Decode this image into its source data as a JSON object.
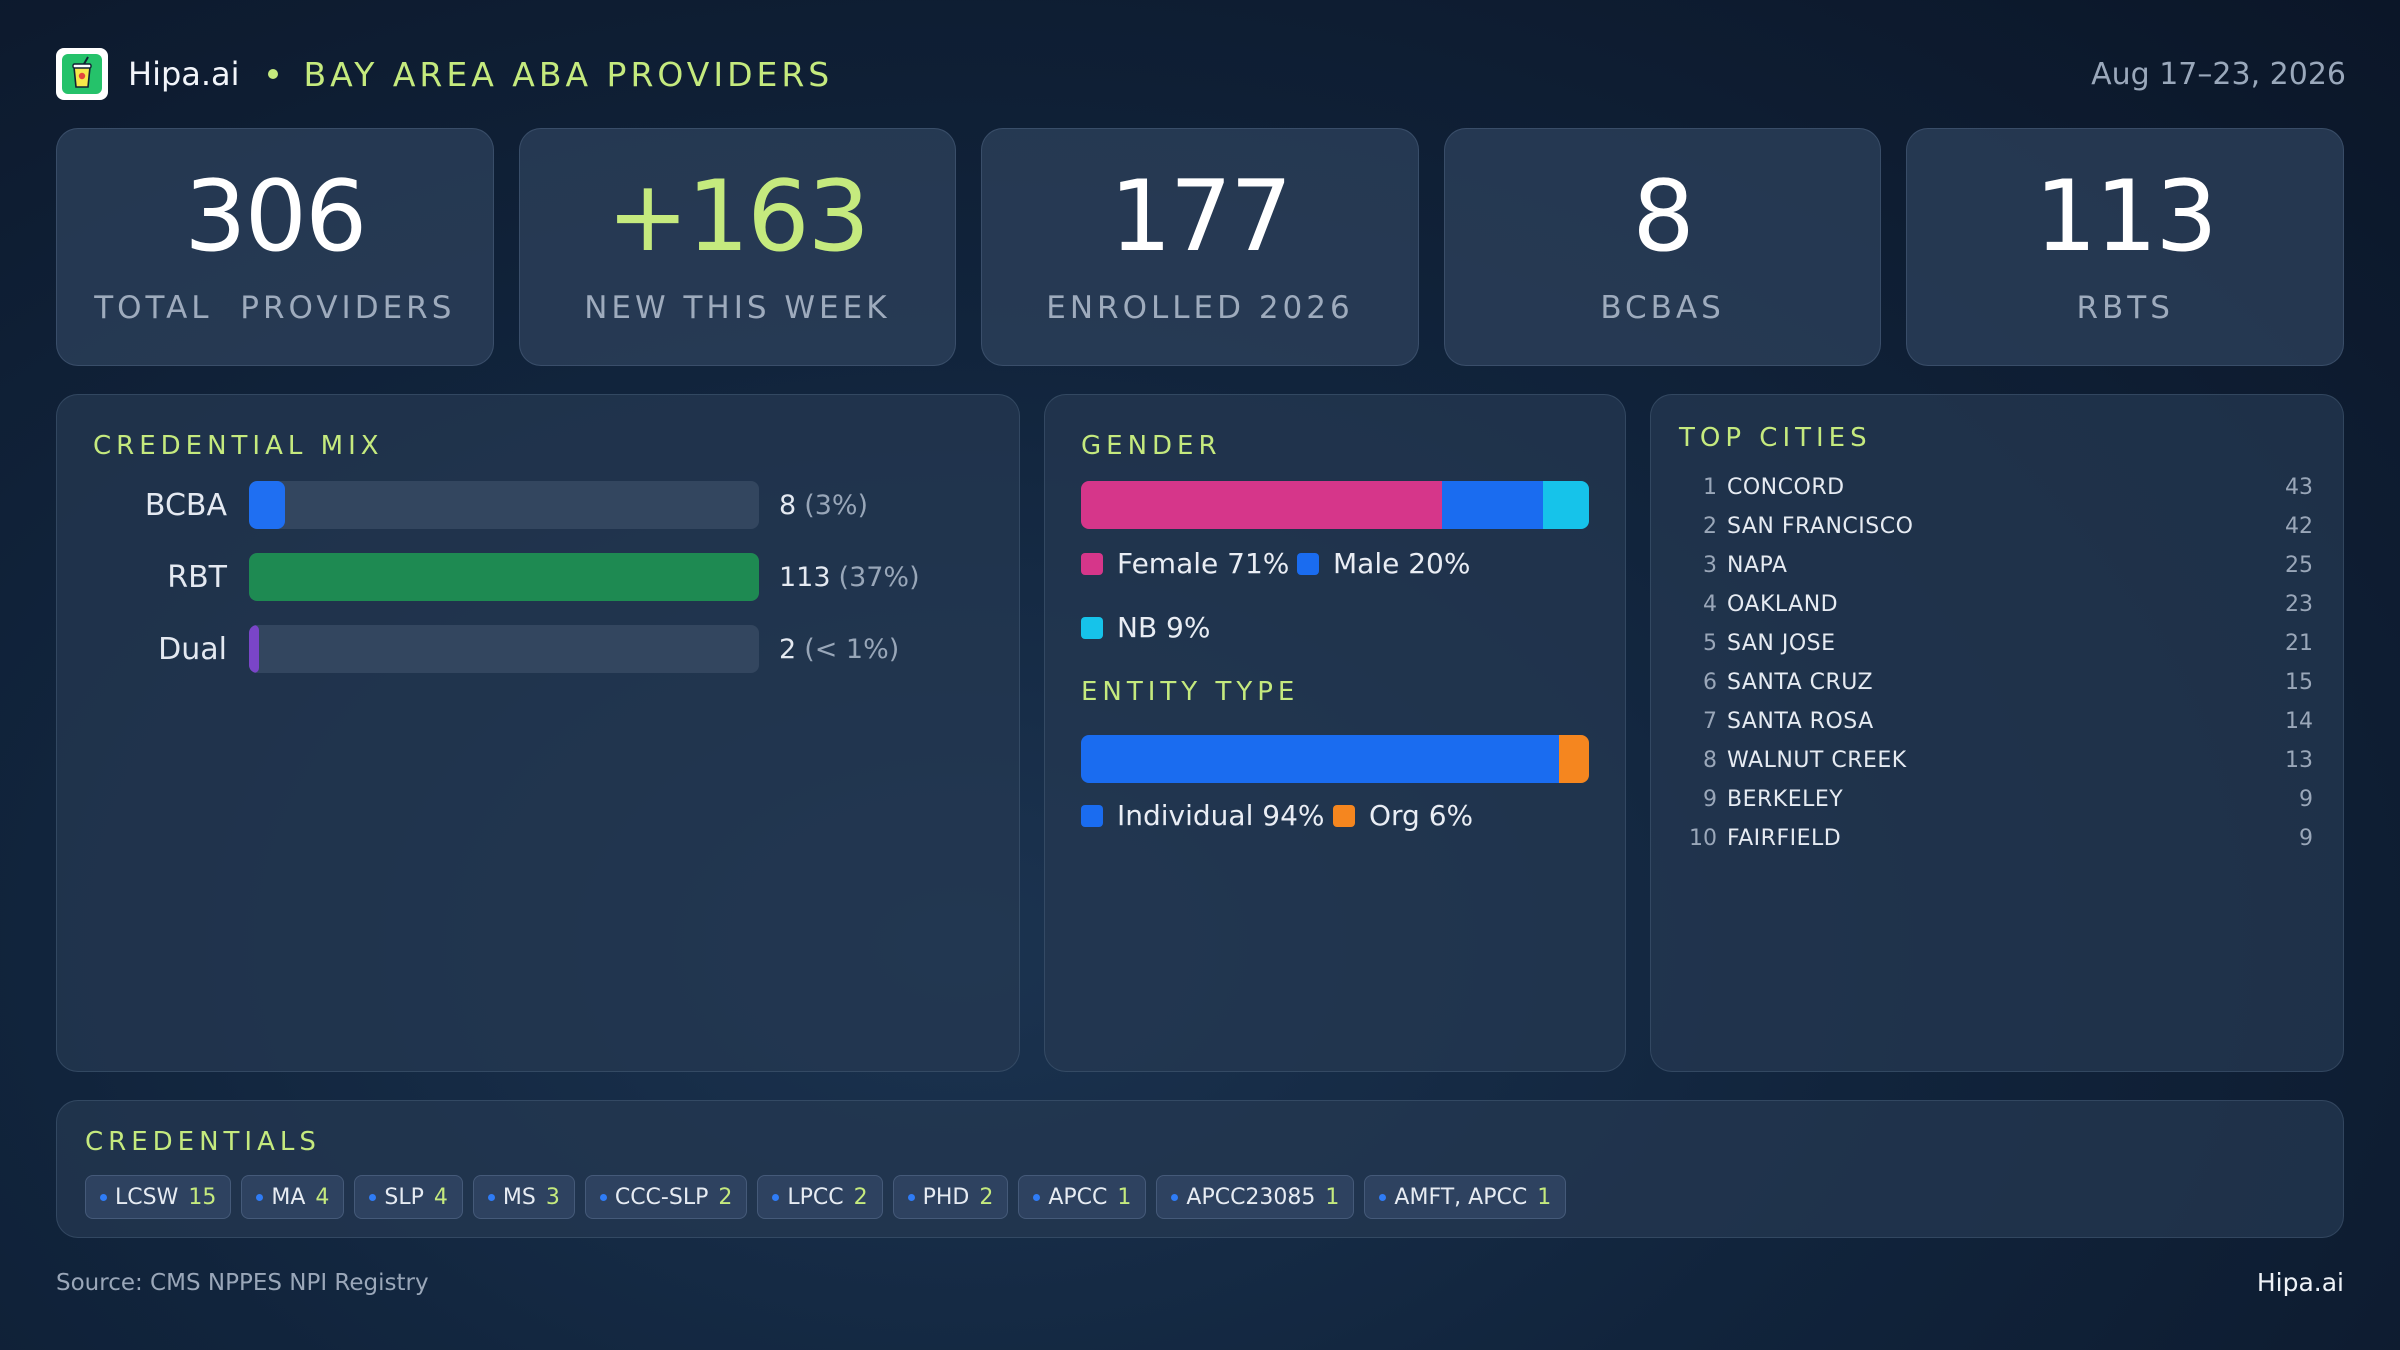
{
  "header": {
    "brand": "Hipa.ai",
    "title": "BAY AREA ABA PROVIDERS",
    "date_range": "Aug 17–23, 2026",
    "logo_icon": "drink-cup-icon"
  },
  "kpis": [
    {
      "value": "306",
      "label": "TOTAL  PROVIDERS"
    },
    {
      "value": "+163",
      "label": "NEW THIS WEEK"
    },
    {
      "value": "177",
      "label": "ENROLLED 2026"
    },
    {
      "value": "8",
      "label": "BCBAS"
    },
    {
      "value": "113",
      "label": "RBTS"
    }
  ],
  "credential_mix": {
    "title": "CREDENTIAL MIX",
    "rows": [
      {
        "label": "BCBA",
        "value": "8",
        "pct": "(3%)",
        "fill_fraction": 0.07,
        "color": "#1f6ff2"
      },
      {
        "label": "RBT",
        "value": "113",
        "pct": "(37%)",
        "fill_fraction": 1.0,
        "color": "#1e8a52"
      },
      {
        "label": "Dual",
        "value": "2",
        "pct": "(< 1%)",
        "fill_fraction": 0.02,
        "color": "#7a45c8"
      }
    ]
  },
  "gender": {
    "title": "GENDER",
    "segments": [
      {
        "label": "Female 71%",
        "fraction": 0.71,
        "color": "#d6368a"
      },
      {
        "label": "Male 20%",
        "fraction": 0.2,
        "color": "#1a6cf0"
      },
      {
        "label": "NB 9%",
        "fraction": 0.09,
        "color": "#16c3ea"
      }
    ]
  },
  "entity_type": {
    "title": "ENTITY TYPE",
    "segments": [
      {
        "label": "Individual 94%",
        "fraction": 0.94,
        "color": "#1a6cf0"
      },
      {
        "label": "Org 6%",
        "fraction": 0.06,
        "color": "#f5861f"
      }
    ]
  },
  "top_cities": {
    "title": "TOP CITIES",
    "items": [
      {
        "rank": "1",
        "name": "CONCORD",
        "count": "43"
      },
      {
        "rank": "2",
        "name": "SAN FRANCISCO",
        "count": "42"
      },
      {
        "rank": "3",
        "name": "NAPA",
        "count": "25"
      },
      {
        "rank": "4",
        "name": "OAKLAND",
        "count": "23"
      },
      {
        "rank": "5",
        "name": "SAN JOSE",
        "count": "21"
      },
      {
        "rank": "6",
        "name": "SANTA CRUZ",
        "count": "15"
      },
      {
        "rank": "7",
        "name": "SANTA ROSA",
        "count": "14"
      },
      {
        "rank": "8",
        "name": "WALNUT CREEK",
        "count": "13"
      },
      {
        "rank": "9",
        "name": "BERKELEY",
        "count": "9"
      },
      {
        "rank": "10",
        "name": "FAIRFIELD",
        "count": "9"
      }
    ]
  },
  "credentials": {
    "title": "CREDENTIALS",
    "chips": [
      {
        "name": "LCSW",
        "count": "15"
      },
      {
        "name": "MA",
        "count": "4"
      },
      {
        "name": "SLP",
        "count": "4"
      },
      {
        "name": "MS",
        "count": "3"
      },
      {
        "name": "CCC-SLP",
        "count": "2"
      },
      {
        "name": "LPCC",
        "count": "2"
      },
      {
        "name": "PHD",
        "count": "2"
      },
      {
        "name": "APCC",
        "count": "1"
      },
      {
        "name": "APCC23085",
        "count": "1"
      },
      {
        "name": "AMFT, APCC",
        "count": "1"
      }
    ]
  },
  "footer": {
    "source": "Source: CMS NPPES NPI Registry",
    "brand": "Hipa.ai"
  }
}
